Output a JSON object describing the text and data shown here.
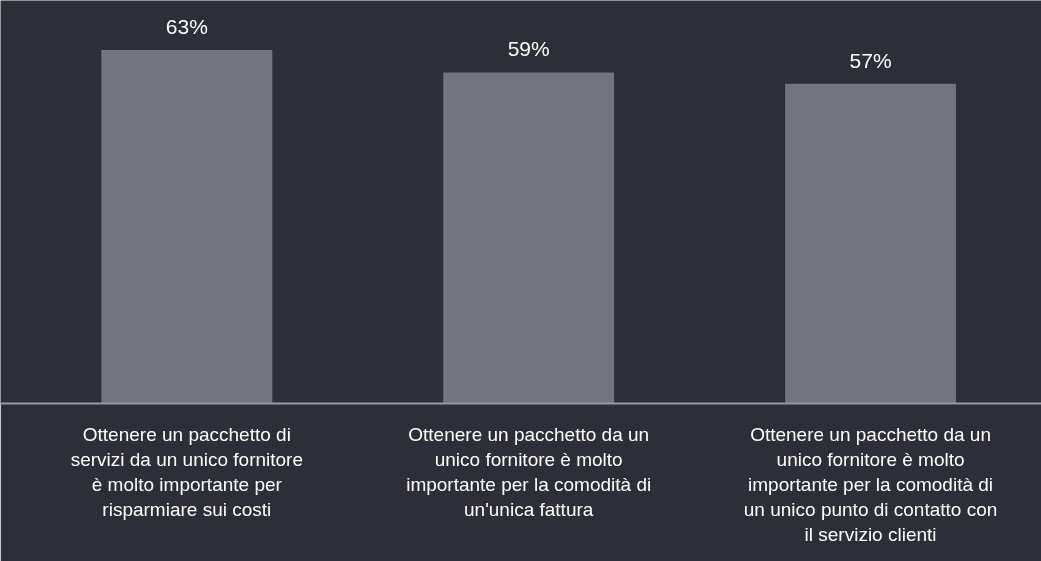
{
  "chart_data": {
    "type": "bar",
    "categories": [
      "Ottenere un pacchetto di servizi da un unico fornitore è molto importante per risparmiare sui costi",
      "Ottenere un pacchetto da un unico fornitore è molto importante per la comodità di un'unica fattura",
      "Ottenere un pacchetto da un unico fornitore è molto importante per la comodità di un unico punto di contatto con il servizio clienti"
    ],
    "values": [
      63,
      59,
      57
    ],
    "color": "#747480",
    "data_labels": true,
    "value_labels": [
      "63%",
      "59%",
      "57%"
    ]
  }
}
